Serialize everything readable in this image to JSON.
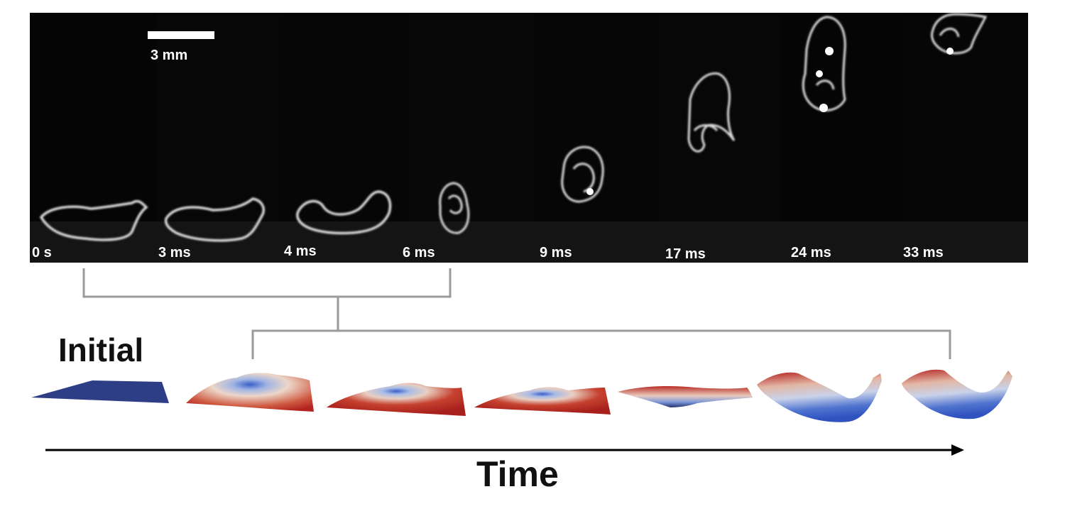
{
  "scale_bar": {
    "label": "3 mm"
  },
  "frames": [
    {
      "label": "0 s"
    },
    {
      "label": "3 ms"
    },
    {
      "label": "4 ms"
    },
    {
      "label": "6 ms"
    },
    {
      "label": "9 ms"
    },
    {
      "label": "17 ms"
    },
    {
      "label": "24 ms"
    },
    {
      "label": "33 ms"
    }
  ],
  "simulation": {
    "initial_label": "Initial"
  },
  "time_axis": {
    "label": "Time"
  },
  "colors": {
    "background": "#000000",
    "specimen": "#d8d8d8",
    "bracket": "#9a9a9a",
    "initial_sheet": "#2d3d86",
    "hot": "#b4231f",
    "mid": "#e8cfc2",
    "cold": "#3b5fc9",
    "arrow": "#000000"
  }
}
